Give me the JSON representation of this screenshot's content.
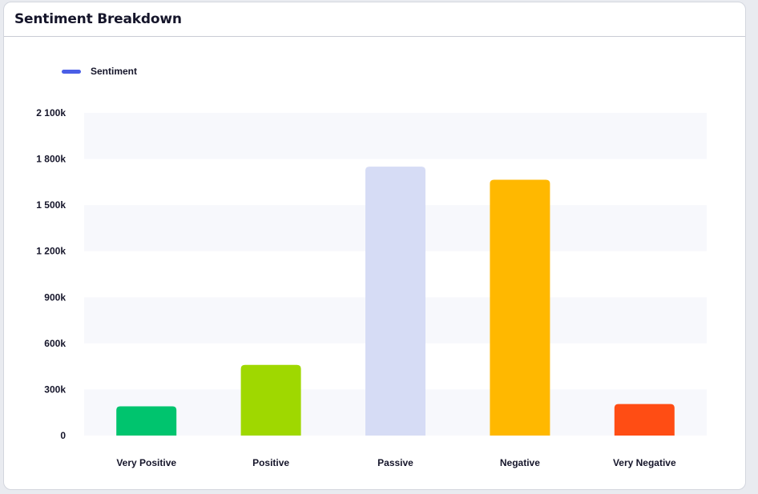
{
  "card": {
    "title": "Sentiment Breakdown"
  },
  "legend": {
    "label": "Sentiment",
    "color": "#4a5ee6"
  },
  "chart_data": {
    "type": "bar",
    "categories": [
      "Very Positive",
      "Positive",
      "Passive",
      "Negative",
      "Very Negative"
    ],
    "series": [
      {
        "name": "Sentiment",
        "values": [
          190000,
          460000,
          1750000,
          1665000,
          205000
        ]
      }
    ],
    "colors": [
      "#00c46e",
      "#9fd800",
      "#d6dcf5",
      "#ffb800",
      "#ff4d14"
    ],
    "yticks": [
      0,
      300000,
      600000,
      900000,
      1200000,
      1500000,
      1800000,
      2100000
    ],
    "ytick_labels": [
      "0",
      "300k",
      "600k",
      "900k",
      "1 200k",
      "1 500k",
      "1 800k",
      "2 100k"
    ],
    "ylim": [
      0,
      2100000
    ],
    "grid": "alternating horizontal bands",
    "legend_position": "top-left",
    "band_color": "#f7f8fc"
  }
}
